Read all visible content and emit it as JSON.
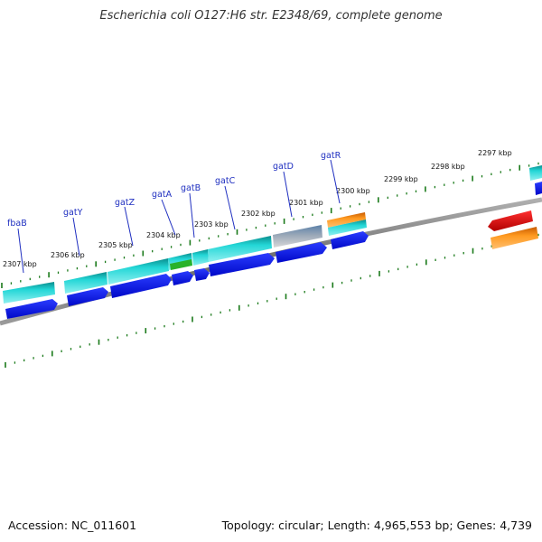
{
  "title": "Escherichia coli O127:H6 str. E2348/69, complete genome",
  "footer": {
    "accession": "Accession: NC_011601",
    "info": "Topology: circular; Length: 4,965,553 bp; Genes: 4,739"
  },
  "scale_labels": [
    "2307 kbp",
    "2306 kbp",
    "2305 kbp",
    "2304 kbp",
    "2303 kbp",
    "2302 kbp",
    "2301 kbp",
    "2300 kbp",
    "2299 kbp",
    "2298 kbp",
    "2297 kbp"
  ],
  "gene_labels": [
    "fbaB",
    "gatY",
    "gatZ",
    "gatA",
    "gatB",
    "gatC",
    "gatD",
    "gatR"
  ],
  "colors": {
    "backbone": "#8a8a8a",
    "tick": "#1a7a1a",
    "cds": "#0a10e0",
    "gene_feature": "#1ec8c8",
    "gene_feature_dark": "#0a8c8c",
    "orange_feature": "#ff8c10",
    "red_feature": "#e01010",
    "grey_feature": "#a8a8a8",
    "green_feature": "#29b229",
    "steel_feature": "#5a80a8",
    "label_text": "#1f2fc0"
  }
}
